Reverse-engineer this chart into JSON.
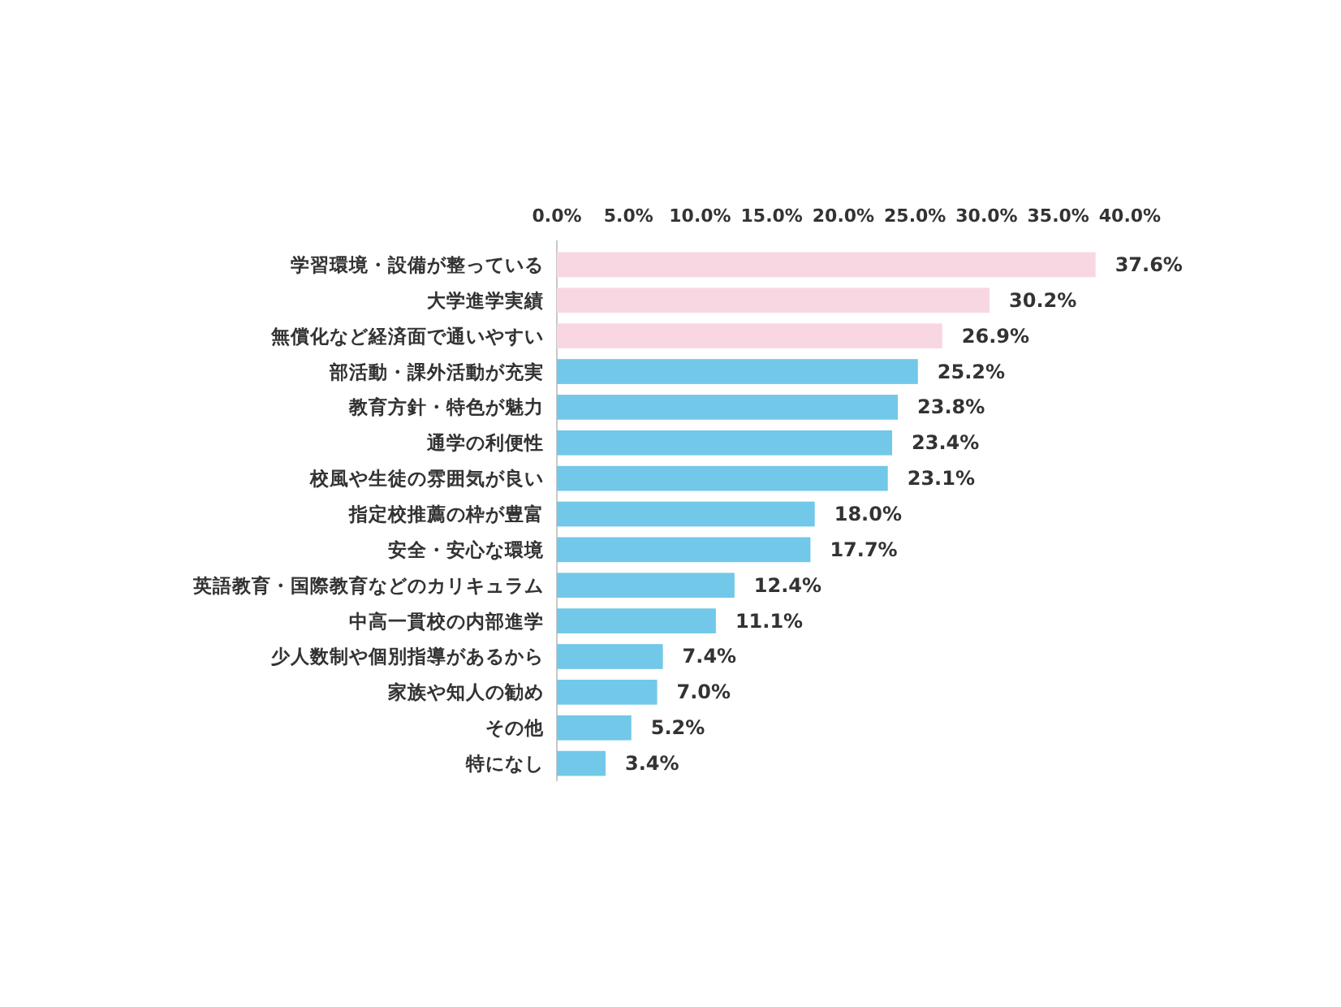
{
  "chart_data": {
    "type": "bar",
    "orientation": "horizontal",
    "categories": [
      "学習環境・設備が整っている",
      "大学進学実績",
      "無償化など経済面で通いやすい",
      "部活動・課外活動が充実",
      "教育方針・特色が魅力",
      "通学の利便性",
      "校風や生徒の雰囲気が良い",
      "指定校推薦の枠が豊富",
      "安全・安心な環境",
      "英語教育・国際教育などのカリキュラム",
      "中高一貫校の内部進学",
      "少人数制や個別指導があるから",
      "家族や知人の勧め",
      "その他",
      "特になし"
    ],
    "values": [
      37.6,
      30.2,
      26.9,
      25.2,
      23.8,
      23.4,
      23.1,
      18.0,
      17.7,
      12.4,
      11.1,
      7.4,
      7.0,
      5.2,
      3.4
    ],
    "value_labels": [
      "37.6%",
      "30.2%",
      "26.9%",
      "25.2%",
      "23.8%",
      "23.4%",
      "23.1%",
      "18.0%",
      "17.7%",
      "12.4%",
      "11.1%",
      "7.4%",
      "7.0%",
      "5.2%",
      "3.4%"
    ],
    "colors": [
      "#f8d7e3",
      "#f8d7e3",
      "#f8d7e3",
      "#72c8e8",
      "#72c8e8",
      "#72c8e8",
      "#72c8e8",
      "#72c8e8",
      "#72c8e8",
      "#72c8e8",
      "#72c8e8",
      "#72c8e8",
      "#72c8e8",
      "#72c8e8",
      "#72c8e8"
    ],
    "xlim": [
      0,
      40
    ],
    "xticks": [
      {
        "value": 0,
        "label": "0.0%"
      },
      {
        "value": 5,
        "label": "5.0%"
      },
      {
        "value": 10,
        "label": "10.0%"
      },
      {
        "value": 15,
        "label": "15.0%"
      },
      {
        "value": 20,
        "label": "20.0%"
      },
      {
        "value": 25,
        "label": "25.0%"
      },
      {
        "value": 30,
        "label": "30.0%"
      },
      {
        "value": 35,
        "label": "35.0%"
      },
      {
        "value": 40,
        "label": "40.0%"
      }
    ]
  }
}
